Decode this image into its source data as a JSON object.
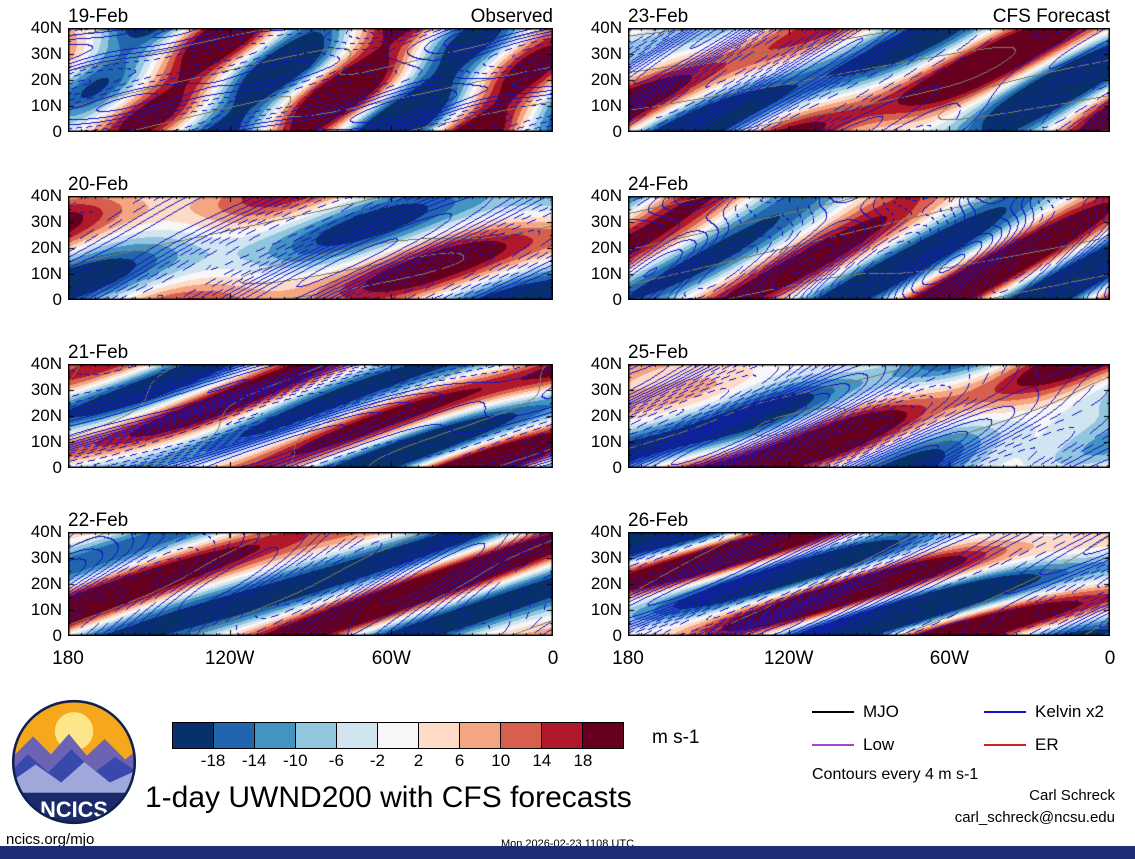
{
  "chart_data": {
    "type": "heatmap",
    "title": "1-day UWND200 with CFS forecasts",
    "variable": "UWND200",
    "units": "m s-1",
    "column_headers": {
      "left": "Observed",
      "right": "CFS Forecast"
    },
    "panels": [
      {
        "date": "19-Feb",
        "column": "Observed"
      },
      {
        "date": "20-Feb",
        "column": "Observed"
      },
      {
        "date": "21-Feb",
        "column": "Observed"
      },
      {
        "date": "22-Feb",
        "column": "Observed"
      },
      {
        "date": "23-Feb",
        "column": "CFS Forecast"
      },
      {
        "date": "24-Feb",
        "column": "CFS Forecast"
      },
      {
        "date": "25-Feb",
        "column": "CFS Forecast"
      },
      {
        "date": "26-Feb",
        "column": "CFS Forecast"
      }
    ],
    "lat_ticks": [
      "40N",
      "30N",
      "20N",
      "10N",
      "0"
    ],
    "lon_ticks": [
      "180",
      "120W",
      "60W",
      "0"
    ],
    "lat_range": [
      0,
      40
    ],
    "lon_range": [
      180,
      0
    ],
    "colorbar": {
      "levels": [
        -18,
        -14,
        -10,
        -6,
        -2,
        2,
        6,
        10,
        14,
        18
      ],
      "tick_labels": [
        "-18",
        "-14",
        "-10",
        "-6",
        "-2",
        "2",
        "6",
        "10",
        "14",
        "18"
      ],
      "unit_label": "m s-1",
      "colors": [
        "#08306b",
        "#2166ac",
        "#4393c3",
        "#92c5de",
        "#d1e5f0",
        "#f7f7f7",
        "#fddbc7",
        "#f4a582",
        "#d6604d",
        "#b2182b",
        "#67001f"
      ]
    },
    "legend": {
      "items": [
        {
          "label": "MJO",
          "color": "#000000"
        },
        {
          "label": "Kelvin x2",
          "color": "#1414cc"
        },
        {
          "label": "Low",
          "color": "#aa44cc"
        },
        {
          "label": "ER",
          "color": "#cc2222"
        }
      ],
      "note": "Contours every 4 m s-1"
    }
  },
  "footer": {
    "logo_text": "NCICS",
    "site": "ncics.org/mjo",
    "timestamp": "Mon 2026-02-23 1108 UTC",
    "credit_name": "Carl Schreck",
    "credit_email": "carl_schreck@ncsu.edu"
  }
}
